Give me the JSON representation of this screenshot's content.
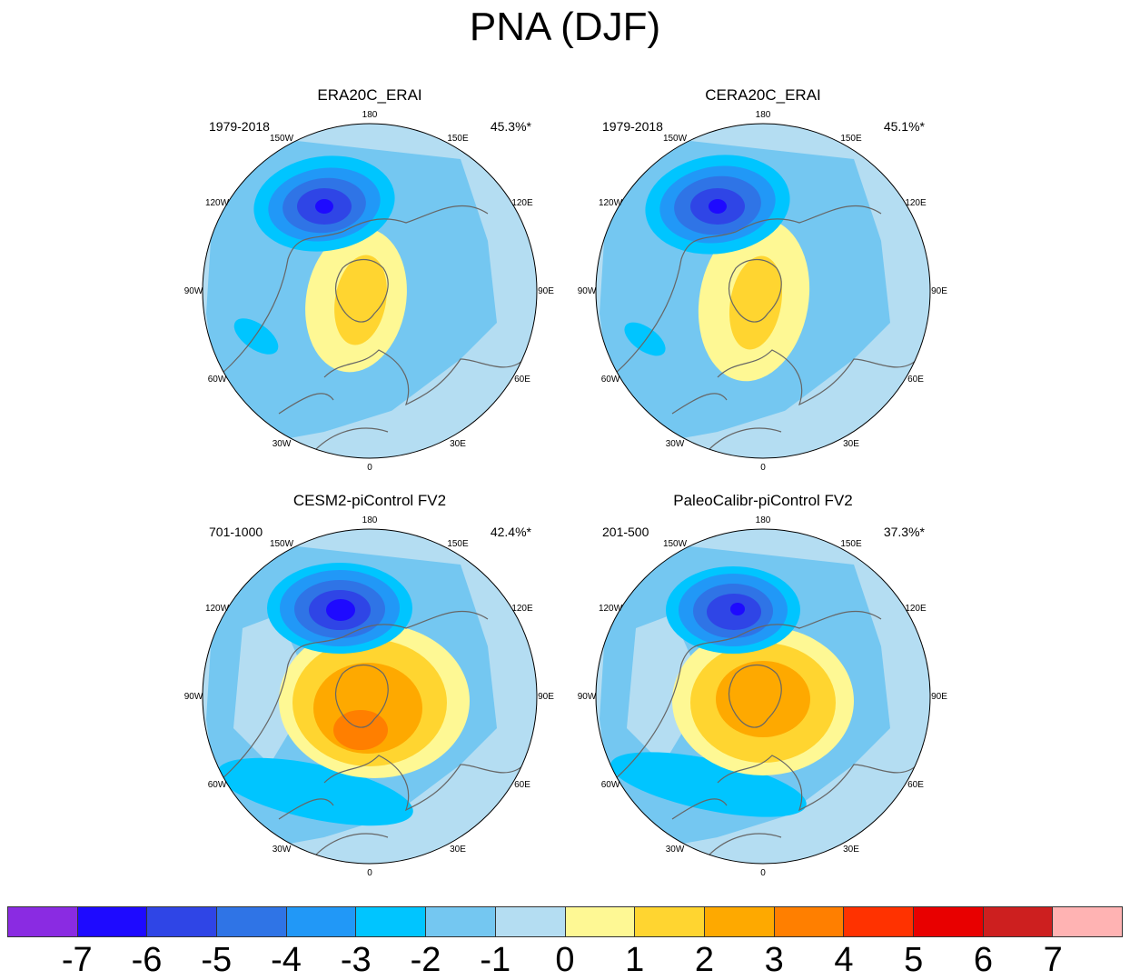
{
  "title": "PNA (DJF)",
  "panels": [
    {
      "title": "ERA20C_ERAI",
      "period": "1979-2018",
      "percent": "45.3%*"
    },
    {
      "title": "CERA20C_ERAI",
      "period": "1979-2018",
      "percent": "45.1%*"
    },
    {
      "title": "CESM2-piControl FV2",
      "period": "701-1000",
      "percent": "42.4%*"
    },
    {
      "title": "PaleoCalibr-piControl FV2",
      "period": "201-500",
      "percent": "37.3%*"
    }
  ],
  "longitude_labels": {
    "lon_180": "180",
    "lon_150e": "150E",
    "lon_120e": "120E",
    "lon_90e": "90E",
    "lon_60e": "60E",
    "lon_30e": "30E",
    "lon_0": "0",
    "lon_30w": "30W",
    "lon_60w": "60W",
    "lon_90w": "90W",
    "lon_120w": "120W",
    "lon_150w": "150W"
  },
  "colorbar": {
    "colors": [
      "#8a2be2",
      "#1e0aff",
      "#2f45e6",
      "#2f74e6",
      "#2198f7",
      "#00c5ff",
      "#74c7f1",
      "#b4ddf2",
      "#fef894",
      "#ffd530",
      "#fea900",
      "#ff7f00",
      "#ff3200",
      "#e80000",
      "#cd1f1f",
      "#ffb3b3"
    ],
    "labels": [
      "-7",
      "-6",
      "-5",
      "-4",
      "-3",
      "-2",
      "-1",
      "0",
      "1",
      "2",
      "3",
      "4",
      "5",
      "6",
      "7"
    ]
  }
}
